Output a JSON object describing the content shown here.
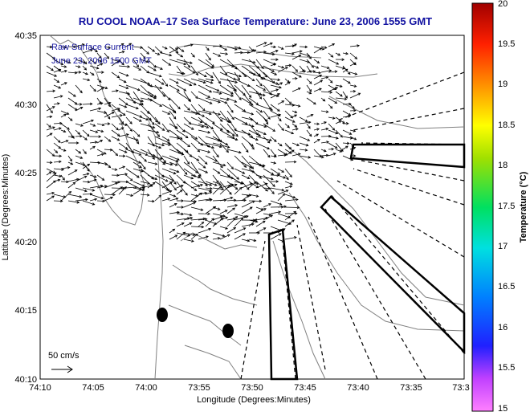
{
  "title": "RU COOL   NOAA–17  Sea Surface Temperature:  June 23, 2006 1555 GMT",
  "inset": {
    "line1": "Raw Surface Current",
    "line2": "June 23, 2006 1500 GMT"
  },
  "scale_label": "50 cm/s",
  "xlabel": "Longitude (Degrees:Minutes)",
  "ylabel": "Latitude (Degrees:Minutes)",
  "x_ticks": [
    "74:10",
    "74:05",
    "74:00",
    "73:55",
    "73:50",
    "73:45",
    "73:40",
    "73:35",
    "73:3"
  ],
  "y_ticks": [
    "40:35",
    "40:30",
    "40:25",
    "40:20",
    "40:15",
    "40:10"
  ],
  "colorbar": {
    "label": "Temperature (°C)",
    "min": 15,
    "max": 20,
    "ticks": [
      "20",
      "19.5",
      "19",
      "18.5",
      "18",
      "17.5",
      "17",
      "16.5",
      "16",
      "15.5",
      "15"
    ]
  },
  "colors": {
    "title": "#1010a0",
    "inset_text": "#1a1aa0",
    "coast": "#808080",
    "zones": "#000000"
  }
}
